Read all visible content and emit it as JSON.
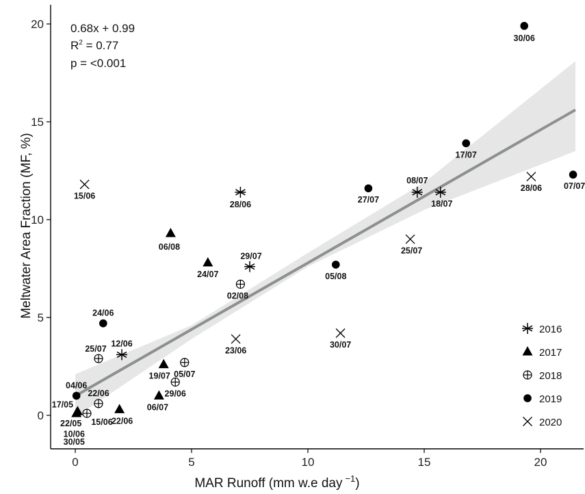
{
  "chart_data": {
    "type": "scatter",
    "xlabel": "MAR Runoff (mm w.e day",
    "xlabel_sup": "−1",
    "xlabel_close": ")",
    "ylabel": "Meltwater Area Fraction (MF, %)",
    "xlim": [
      -1.8,
      22
    ],
    "ylim": [
      -1.5,
      21
    ],
    "xticks": [
      0,
      5,
      10,
      15,
      20
    ],
    "yticks": [
      0,
      5,
      10,
      15,
      20
    ],
    "grid": false,
    "legend_position": "bottom-right",
    "stats": {
      "equation": "0.68x + 0.99",
      "r2_prefix": "R",
      "r2_sup": "2",
      "r2_value": " = 0.77",
      "p": "p = <0.001"
    },
    "regression": {
      "slope": 0.68,
      "intercept": 0.99,
      "x_range": [
        0,
        21.5
      ],
      "ci_lower": [
        [
          0,
          -0.1
        ],
        [
          5,
          3.9
        ],
        [
          10,
          7.6
        ],
        [
          15,
          10.5
        ],
        [
          21.5,
          13.5
        ]
      ],
      "ci_upper": [
        [
          0,
          2.1
        ],
        [
          5,
          4.6
        ],
        [
          10,
          8.3
        ],
        [
          15,
          11.9
        ],
        [
          21.5,
          18.1
        ]
      ],
      "line_color": "#8c918c",
      "band_color": "#e6e6e6"
    },
    "series": [
      {
        "name": "2016",
        "marker": "asterisk",
        "points": [
          {
            "x": 7.1,
            "y": 11.4,
            "label": "28/06"
          },
          {
            "x": 7.5,
            "y": 7.6,
            "label": "29/07"
          },
          {
            "x": 14.7,
            "y": 11.4,
            "label": "08/07"
          },
          {
            "x": 15.7,
            "y": 11.4,
            "label": "18/07"
          },
          {
            "x": 2.0,
            "y": 3.1,
            "label": "12/06"
          }
        ]
      },
      {
        "name": "2017",
        "marker": "triangle",
        "points": [
          {
            "x": 4.1,
            "y": 9.3,
            "label": "06/08"
          },
          {
            "x": 5.7,
            "y": 7.8,
            "label": "24/07"
          },
          {
            "x": 3.8,
            "y": 2.6,
            "label": "19/07"
          },
          {
            "x": 3.6,
            "y": 1.0,
            "label": "06/07"
          },
          {
            "x": 1.9,
            "y": 0.3,
            "label": "22/06"
          },
          {
            "x": 0.1,
            "y": 0.2,
            "label": "17/05"
          },
          {
            "x": 0.05,
            "y": 0.1,
            "label": "22/05"
          }
        ]
      },
      {
        "name": "2018",
        "marker": "circle-plus",
        "points": [
          {
            "x": 7.1,
            "y": 6.7,
            "label": "02/08"
          },
          {
            "x": 4.7,
            "y": 2.7,
            "label": "05/07"
          },
          {
            "x": 4.3,
            "y": 1.7,
            "label": "29/06"
          },
          {
            "x": 1.0,
            "y": 2.9,
            "label": "25/07"
          },
          {
            "x": 1.0,
            "y": 0.6,
            "label": "22/06"
          },
          {
            "x": 0.5,
            "y": 0.1,
            "label": "15/06"
          }
        ]
      },
      {
        "name": "2019",
        "marker": "circle",
        "points": [
          {
            "x": 19.3,
            "y": 19.9,
            "label": "30/06"
          },
          {
            "x": 16.8,
            "y": 13.9,
            "label": "17/07"
          },
          {
            "x": 21.4,
            "y": 12.3,
            "label": "07/07"
          },
          {
            "x": 12.6,
            "y": 11.6,
            "label": "27/07"
          },
          {
            "x": 11.2,
            "y": 7.7,
            "label": "05/08"
          },
          {
            "x": 1.2,
            "y": 4.7,
            "label": "24/06"
          },
          {
            "x": 0.05,
            "y": 1.0,
            "label": "04/06"
          }
        ]
      },
      {
        "name": "2020",
        "marker": "x",
        "points": [
          {
            "x": 0.4,
            "y": 11.8,
            "label": "15/06"
          },
          {
            "x": 19.6,
            "y": 12.2,
            "label": "28/06"
          },
          {
            "x": 14.4,
            "y": 9.0,
            "label": "25/07"
          },
          {
            "x": 6.9,
            "y": 3.9,
            "label": "23/06"
          },
          {
            "x": 11.4,
            "y": 4.2,
            "label": "30/07"
          }
        ]
      }
    ],
    "extra_labels": [
      {
        "x": -0.05,
        "y": -0.9,
        "text": "10/06"
      },
      {
        "x": -0.05,
        "y": -1.3,
        "text": "30/05"
      }
    ]
  }
}
